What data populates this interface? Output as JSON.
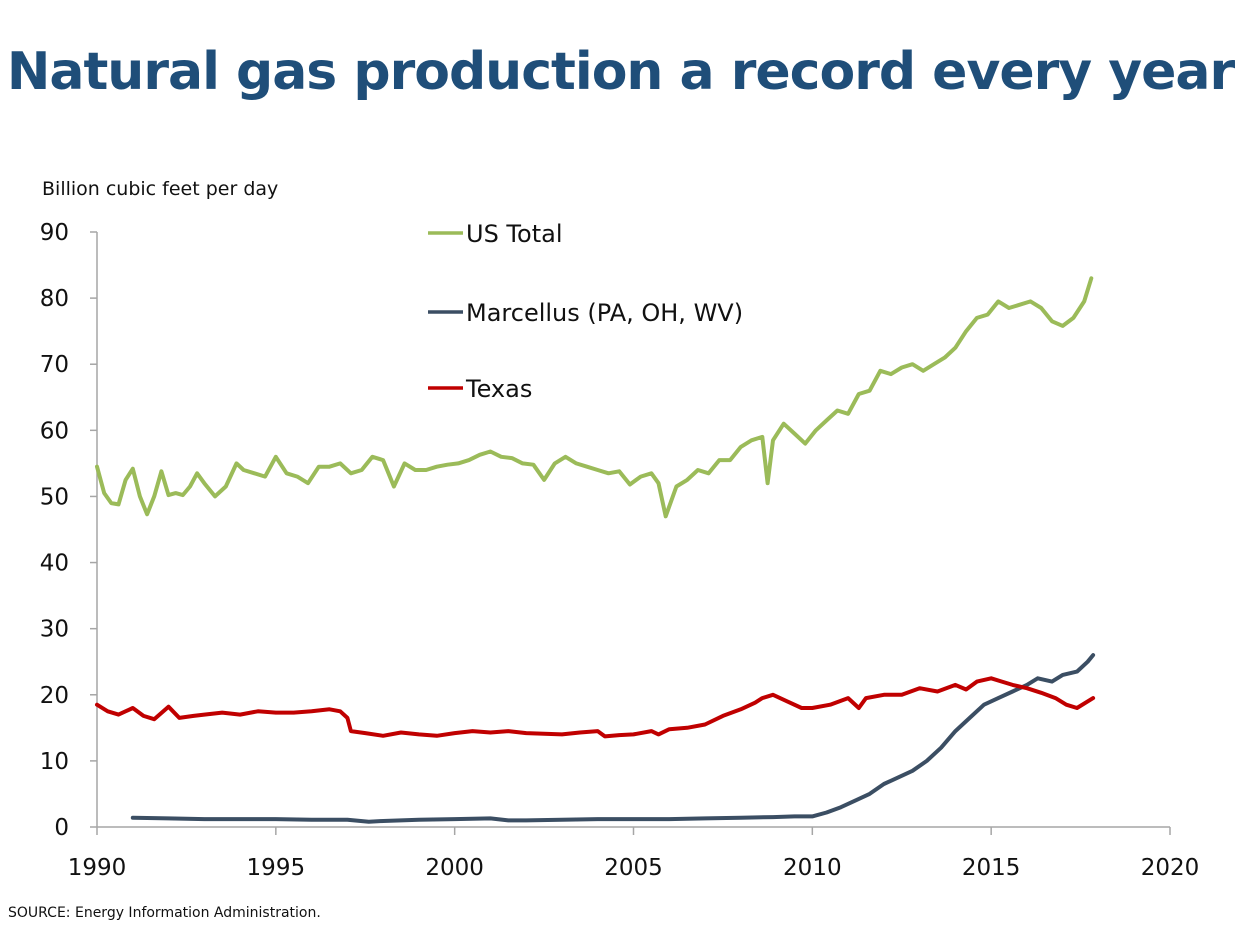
{
  "title": "Natural gas production a record every year",
  "source": "SOURCE: Energy Information Administration.",
  "chart_data": {
    "type": "line",
    "title": "Natural gas production a record every year",
    "ylabel": "Billion cubic feet per day",
    "xlabel": "",
    "xlim": [
      1990,
      2020
    ],
    "ylim": [
      0,
      90
    ],
    "xticks": [
      1990,
      1995,
      2000,
      2005,
      2010,
      2015,
      2020
    ],
    "yticks": [
      0,
      10,
      20,
      30,
      40,
      50,
      60,
      70,
      80,
      90
    ],
    "grid": false,
    "legend_position": "top-center",
    "series": [
      {
        "name": "US Total",
        "color": "#9bbb59",
        "x": [
          1990.0,
          1990.2,
          1990.4,
          1990.6,
          1990.8,
          1991.0,
          1991.2,
          1991.4,
          1991.6,
          1991.8,
          1992.0,
          1992.2,
          1992.4,
          1992.6,
          1992.8,
          1993.0,
          1993.3,
          1993.6,
          1993.9,
          1994.1,
          1994.4,
          1994.7,
          1995.0,
          1995.3,
          1995.6,
          1995.9,
          1996.2,
          1996.5,
          1996.8,
          1997.1,
          1997.4,
          1997.7,
          1998.0,
          1998.3,
          1998.6,
          1998.9,
          1999.2,
          1999.5,
          1999.8,
          2000.1,
          2000.4,
          2000.7,
          2001.0,
          2001.3,
          2001.6,
          2001.9,
          2002.2,
          2002.5,
          2002.8,
          2003.1,
          2003.4,
          2003.7,
          2004.0,
          2004.3,
          2004.6,
          2004.9,
          2005.2,
          2005.5,
          2005.7,
          2005.9,
          2006.2,
          2006.5,
          2006.8,
          2007.1,
          2007.4,
          2007.7,
          2008.0,
          2008.3,
          2008.6,
          2008.75,
          2008.9,
          2009.2,
          2009.5,
          2009.8,
          2010.1,
          2010.4,
          2010.7,
          2011.0,
          2011.3,
          2011.6,
          2011.9,
          2012.2,
          2012.5,
          2012.8,
          2013.1,
          2013.4,
          2013.7,
          2014.0,
          2014.3,
          2014.6,
          2014.9,
          2015.2,
          2015.5,
          2015.8,
          2016.1,
          2016.4,
          2016.7,
          2017.0,
          2017.3,
          2017.6,
          2017.8
        ],
        "values": [
          54.5,
          50.5,
          49.0,
          48.8,
          52.5,
          54.2,
          50.0,
          47.3,
          50.0,
          53.8,
          50.2,
          50.5,
          50.2,
          51.5,
          53.5,
          52.0,
          50.0,
          51.5,
          55.0,
          54.0,
          53.5,
          53.0,
          56.0,
          53.5,
          53.0,
          52.0,
          54.5,
          54.5,
          55.0,
          53.5,
          54.0,
          56.0,
          55.5,
          51.5,
          55.0,
          54.0,
          54.0,
          54.5,
          54.8,
          55.0,
          55.5,
          56.3,
          56.8,
          56.0,
          55.8,
          55.0,
          54.8,
          52.5,
          55.0,
          56.0,
          55.0,
          54.5,
          54.0,
          53.5,
          53.8,
          51.8,
          53.0,
          53.5,
          52.0,
          47.0,
          51.5,
          52.5,
          54.0,
          53.5,
          55.5,
          55.5,
          57.5,
          58.5,
          59.0,
          52.0,
          58.5,
          61.0,
          59.5,
          58.0,
          60.0,
          61.5,
          63.0,
          62.5,
          65.5,
          66.0,
          69.0,
          68.5,
          69.5,
          70.0,
          69.0,
          70.0,
          71.0,
          72.5,
          75.0,
          77.0,
          77.5,
          79.5,
          78.5,
          79.0,
          79.5,
          78.5,
          76.5,
          75.8,
          77.0,
          79.5,
          83.0
        ]
      },
      {
        "name": "Marcellus (PA, OH, WV)",
        "color": "#3b4e63",
        "x": [
          1991.0,
          1992.0,
          1993.0,
          1994.0,
          1995.0,
          1996.0,
          1997.0,
          1997.6,
          1998.0,
          1999.0,
          2000.0,
          2001.0,
          2001.5,
          2002.0,
          2003.0,
          2004.0,
          2005.0,
          2006.0,
          2007.0,
          2008.0,
          2008.9,
          2009.5,
          2010.0,
          2010.4,
          2010.8,
          2011.2,
          2011.6,
          2012.0,
          2012.4,
          2012.8,
          2013.2,
          2013.6,
          2014.0,
          2014.4,
          2014.8,
          2015.2,
          2015.6,
          2016.0,
          2016.3,
          2016.7,
          2017.0,
          2017.4,
          2017.7,
          2017.85
        ],
        "values": [
          1.4,
          1.3,
          1.2,
          1.2,
          1.2,
          1.1,
          1.1,
          0.8,
          0.9,
          1.1,
          1.2,
          1.3,
          1.0,
          1.0,
          1.1,
          1.2,
          1.2,
          1.2,
          1.3,
          1.4,
          1.5,
          1.6,
          1.6,
          2.2,
          3.0,
          4.0,
          5.0,
          6.5,
          7.5,
          8.5,
          10.0,
          12.0,
          14.5,
          16.5,
          18.5,
          19.5,
          20.5,
          21.5,
          22.5,
          22.0,
          23.0,
          23.5,
          25.0,
          26.0
        ]
      },
      {
        "name": "Texas",
        "color": "#c00000",
        "x": [
          1990.0,
          1990.3,
          1990.6,
          1991.0,
          1991.3,
          1991.6,
          1992.0,
          1992.3,
          1992.7,
          1993.0,
          1993.5,
          1994.0,
          1994.5,
          1995.0,
          1995.5,
          1996.0,
          1996.5,
          1996.8,
          1997.0,
          1997.1,
          1997.5,
          1998.0,
          1998.5,
          1999.0,
          1999.5,
          2000.0,
          2000.5,
          2001.0,
          2001.5,
          2002.0,
          2002.5,
          2003.0,
          2003.5,
          2004.0,
          2004.2,
          2004.6,
          2005.0,
          2005.5,
          2005.7,
          2006.0,
          2006.5,
          2007.0,
          2007.5,
          2008.0,
          2008.4,
          2008.6,
          2008.9,
          2009.3,
          2009.7,
          2010.0,
          2010.5,
          2011.0,
          2011.3,
          2011.5,
          2012.0,
          2012.5,
          2013.0,
          2013.5,
          2014.0,
          2014.3,
          2014.6,
          2015.0,
          2015.3,
          2015.6,
          2016.0,
          2016.4,
          2016.8,
          2017.1,
          2017.4,
          2017.85
        ],
        "values": [
          18.5,
          17.5,
          17.0,
          18.0,
          16.8,
          16.3,
          18.2,
          16.5,
          16.8,
          17.0,
          17.3,
          17.0,
          17.5,
          17.3,
          17.3,
          17.5,
          17.8,
          17.5,
          16.5,
          14.5,
          14.2,
          13.8,
          14.3,
          14.0,
          13.8,
          14.2,
          14.5,
          14.3,
          14.5,
          14.2,
          14.1,
          14.0,
          14.3,
          14.5,
          13.7,
          13.9,
          14.0,
          14.5,
          14.0,
          14.8,
          15.0,
          15.5,
          16.8,
          17.8,
          18.8,
          19.5,
          20.0,
          19.0,
          18.0,
          18.0,
          18.5,
          19.5,
          18.0,
          19.5,
          20.0,
          20.0,
          21.0,
          20.5,
          21.5,
          20.8,
          22.0,
          22.5,
          22.0,
          21.5,
          21.0,
          20.3,
          19.5,
          18.5,
          18.0,
          19.5
        ]
      }
    ]
  }
}
